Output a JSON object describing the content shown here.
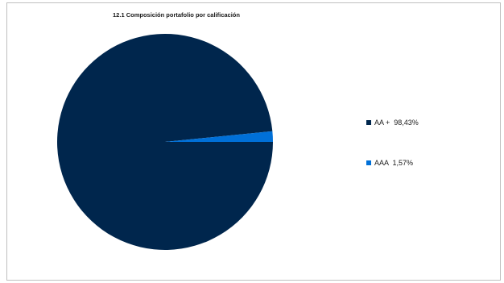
{
  "chart_data": {
    "type": "pie",
    "title": "12.1 Composición portafolio por calificación",
    "categories": [
      "AA +",
      "AAA"
    ],
    "values": [
      98.43,
      1.57
    ],
    "value_labels": [
      "98,43%",
      "1,57%"
    ],
    "colors": [
      "#00264d",
      "#0070d8"
    ],
    "legend_position": "right"
  }
}
